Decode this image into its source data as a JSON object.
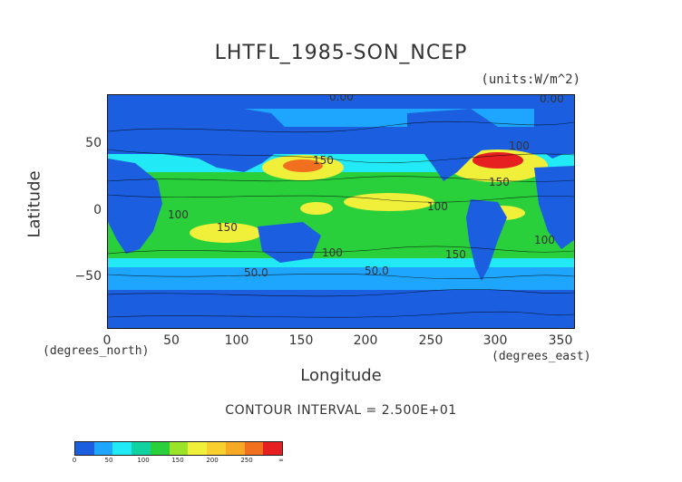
{
  "chart_data": {
    "type": "heatmap",
    "title": "LHTFL_1985-SON_NCEP",
    "units": "(units:W/m^2)",
    "xlabel": "Longitude",
    "ylabel": "Latitude",
    "x_unit_label": "(degrees_east)",
    "y_unit_label": "(degrees_north)",
    "xlim": [
      0,
      360
    ],
    "ylim": [
      -90,
      90
    ],
    "x_ticks": [
      "0",
      "50",
      "100",
      "150",
      "200",
      "250",
      "300",
      "350"
    ],
    "y_ticks": [
      "50",
      "0",
      "−50"
    ],
    "contour_interval": "CONTOUR INTERVAL = 2.500E+01",
    "colorbar": {
      "levels": [
        0,
        25,
        50,
        75,
        100,
        125,
        150,
        175,
        200,
        225,
        250,
        275
      ],
      "labels": [
        "0",
        "50",
        "100",
        "150",
        "200",
        "250",
        "∞"
      ],
      "colors": [
        "#1b5fe0",
        "#1ea6ff",
        "#21e9f5",
        "#10d2a0",
        "#2ad03c",
        "#9be32a",
        "#f0f03a",
        "#f7d030",
        "#f7a925",
        "#f07020",
        "#e62020"
      ]
    },
    "contour_labels": [
      "0.00",
      "0.00",
      "100",
      "150",
      "50.0",
      "100",
      "150",
      "100",
      "150",
      "100",
      "50.0",
      "150",
      "100"
    ]
  }
}
